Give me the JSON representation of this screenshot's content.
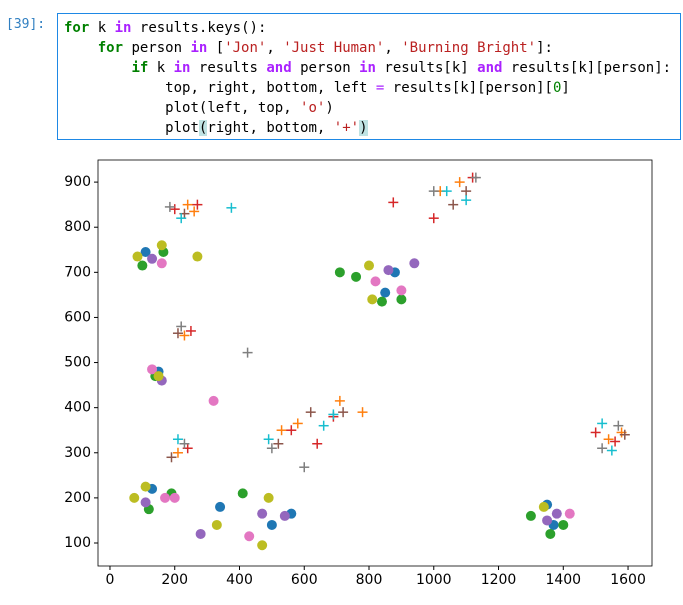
{
  "cell": {
    "prompt": "[39]:",
    "code": [
      "for k in results.keys():",
      "    for person in ['Jon', 'Just Human', 'Burning Bright']:",
      "        if k in results and person in results[k] and results[k][person]:",
      "            top, right, bottom, left = results[k][person][0]",
      "            plot(left, top, 'o')",
      "            plot(right, bottom, '+')"
    ]
  },
  "chart_data": {
    "type": "scatter",
    "xlim": [
      -37,
      1674
    ],
    "ylim": [
      49,
      949
    ],
    "xticks": [
      0,
      200,
      400,
      600,
      800,
      1000,
      1200,
      1400,
      1600
    ],
    "yticks": [
      100,
      200,
      300,
      400,
      500,
      600,
      700,
      800,
      900
    ],
    "series": [
      {
        "marker": "o",
        "color": "#1f77b4",
        "x": [
          110,
          150,
          130,
          340,
          500,
          560,
          880,
          1350,
          1370,
          850
        ],
        "y": [
          745,
          480,
          220,
          180,
          140,
          165,
          700,
          185,
          140,
          655
        ]
      },
      {
        "marker": "o",
        "color": "#2ca02c",
        "x": [
          100,
          165,
          140,
          120,
          190,
          410,
          710,
          760,
          840,
          900,
          1300,
          1400,
          1360
        ],
        "y": [
          715,
          745,
          470,
          175,
          210,
          210,
          700,
          690,
          635,
          640,
          160,
          140,
          120
        ]
      },
      {
        "marker": "o",
        "color": "#9467bd",
        "x": [
          130,
          160,
          110,
          280,
          470,
          540,
          860,
          940,
          1380,
          1350
        ],
        "y": [
          730,
          460,
          190,
          120,
          165,
          160,
          705,
          720,
          165,
          150
        ]
      },
      {
        "marker": "o",
        "color": "#e377c2",
        "x": [
          160,
          130,
          170,
          200,
          320,
          430,
          820,
          900,
          1420
        ],
        "y": [
          720,
          485,
          200,
          200,
          415,
          115,
          680,
          660,
          165
        ]
      },
      {
        "marker": "o",
        "color": "#bcbd22",
        "x": [
          85,
          160,
          270,
          150,
          75,
          110,
          330,
          470,
          490,
          800,
          810,
          1340
        ],
        "y": [
          735,
          760,
          735,
          470,
          200,
          225,
          140,
          95,
          200,
          715,
          640,
          180
        ]
      },
      {
        "marker": "+",
        "color": "#ff7f0e",
        "x": [
          240,
          260,
          230,
          210,
          530,
          580,
          710,
          780,
          1020,
          1080,
          1540,
          1580
        ],
        "y": [
          850,
          835,
          560,
          300,
          350,
          365,
          415,
          390,
          880,
          900,
          330,
          345
        ]
      },
      {
        "marker": "+",
        "color": "#d62728",
        "x": [
          200,
          270,
          250,
          240,
          560,
          640,
          690,
          875,
          1000,
          1120,
          1500,
          1560
        ],
        "y": [
          840,
          850,
          570,
          310,
          350,
          320,
          380,
          855,
          820,
          910,
          345,
          325
        ]
      },
      {
        "marker": "+",
        "color": "#8c564b",
        "x": [
          230,
          210,
          190,
          520,
          620,
          720,
          1060,
          1100,
          1590
        ],
        "y": [
          830,
          565,
          290,
          320,
          390,
          390,
          850,
          880,
          340
        ]
      },
      {
        "marker": "+",
        "color": "#7f7f7f",
        "x": [
          185,
          220,
          230,
          425,
          600,
          500,
          1000,
          1130,
          1570,
          1520
        ],
        "y": [
          845,
          580,
          320,
          522,
          268,
          310,
          880,
          910,
          360,
          310
        ]
      },
      {
        "marker": "+",
        "color": "#17becf",
        "x": [
          220,
          375,
          210,
          490,
          660,
          690,
          1040,
          1100,
          1520,
          1550
        ],
        "y": [
          820,
          843,
          330,
          330,
          360,
          385,
          880,
          860,
          365,
          305
        ]
      }
    ]
  }
}
